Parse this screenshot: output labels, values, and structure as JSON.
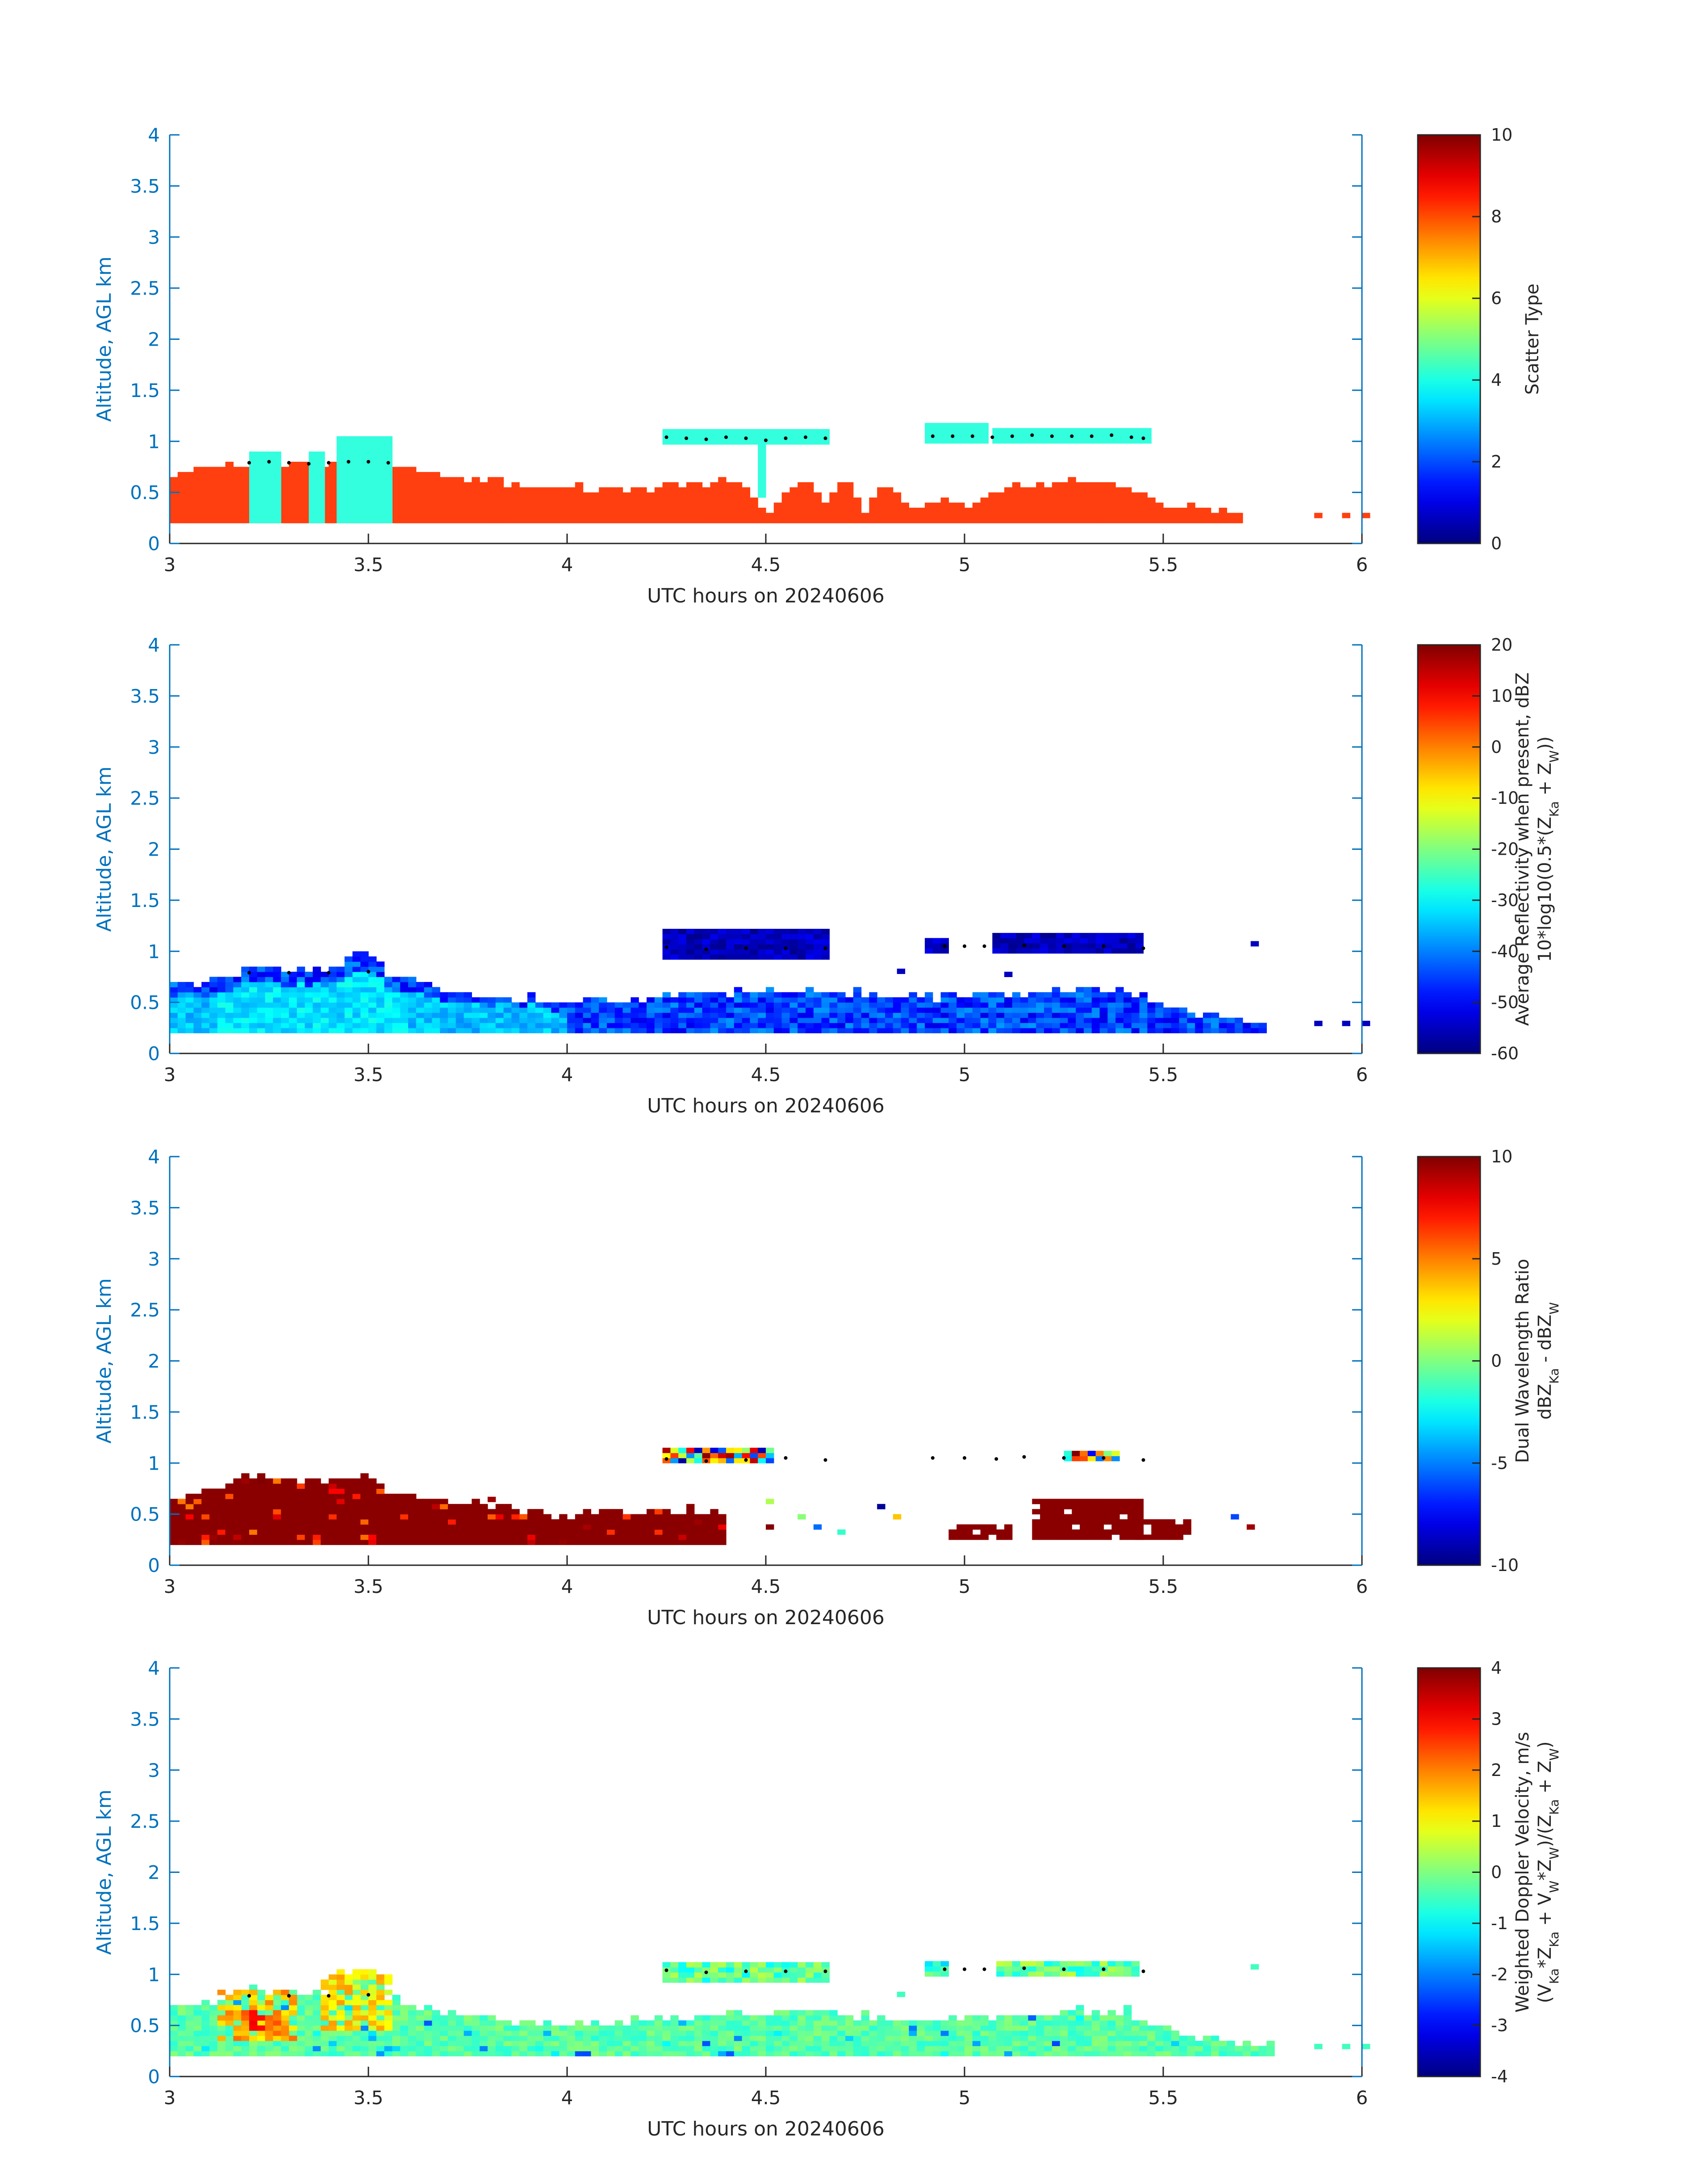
{
  "figure": {
    "background": "#ffffff",
    "axis_color": "#0072BD",
    "text_color": "#262626"
  },
  "chart_data": [
    {
      "type": "heatmap",
      "xlabel": "UTC hours on 20240606",
      "ylabel": "Altitude, AGL km",
      "xlim": [
        3,
        6
      ],
      "ylim": [
        0,
        4
      ],
      "xticks": [
        3,
        3.5,
        4,
        4.5,
        5,
        5.5,
        6
      ],
      "yticks": [
        0,
        0.5,
        1,
        1.5,
        2,
        2.5,
        3,
        3.5,
        4
      ],
      "colorbar": {
        "title_lines": [
          "Scatter Type"
        ],
        "range": [
          0,
          10
        ],
        "ticks": [
          0,
          2,
          4,
          6,
          8,
          10
        ],
        "colormap": "jet"
      },
      "fields": {
        "low": {
          "value": 8.3,
          "color": "#FF3F0F"
        },
        "cloud": {
          "value": 3.5,
          "color": "#33FFDE"
        }
      },
      "low_top_profile": [
        [
          3.0,
          0.62
        ],
        [
          3.1,
          0.72
        ],
        [
          3.2,
          0.75
        ],
        [
          3.3,
          0.75
        ],
        [
          3.4,
          0.75
        ],
        [
          3.5,
          0.75
        ],
        [
          3.55,
          0.75
        ],
        [
          3.6,
          0.7
        ],
        [
          3.7,
          0.65
        ],
        [
          3.8,
          0.6
        ],
        [
          3.9,
          0.55
        ],
        [
          4.0,
          0.52
        ],
        [
          4.1,
          0.5
        ],
        [
          4.2,
          0.52
        ],
        [
          4.3,
          0.55
        ],
        [
          4.4,
          0.58
        ],
        [
          4.45,
          0.5
        ],
        [
          4.5,
          0.3
        ],
        [
          4.55,
          0.45
        ],
        [
          4.6,
          0.55
        ],
        [
          4.65,
          0.4
        ],
        [
          4.7,
          0.6
        ],
        [
          4.75,
          0.3
        ],
        [
          4.8,
          0.55
        ],
        [
          4.85,
          0.4
        ],
        [
          4.9,
          0.35
        ],
        [
          4.95,
          0.4
        ],
        [
          5.0,
          0.35
        ],
        [
          5.05,
          0.45
        ],
        [
          5.1,
          0.5
        ],
        [
          5.15,
          0.55
        ],
        [
          5.2,
          0.55
        ],
        [
          5.25,
          0.6
        ],
        [
          5.3,
          0.6
        ],
        [
          5.35,
          0.58
        ],
        [
          5.4,
          0.55
        ],
        [
          5.45,
          0.5
        ],
        [
          5.5,
          0.35
        ],
        [
          5.55,
          0.33
        ],
        [
          5.6,
          0.35
        ],
        [
          5.65,
          0.3
        ],
        [
          5.7,
          0.25
        ]
      ],
      "cloud_layers": [
        {
          "x": [
            3.2,
            3.28
          ],
          "y": [
            0.2,
            0.9
          ]
        },
        {
          "x": [
            3.35,
            3.39
          ],
          "y": [
            0.2,
            0.9
          ]
        },
        {
          "x": [
            3.42,
            3.55
          ],
          "y": [
            0.2,
            1.05
          ]
        },
        {
          "x": [
            4.24,
            4.65
          ],
          "y": [
            0.97,
            1.12
          ]
        },
        {
          "x": [
            4.48,
            4.5
          ],
          "y": [
            0.45,
            1.0
          ]
        },
        {
          "x": [
            4.9,
            5.04
          ],
          "y": [
            0.98,
            1.18
          ]
        },
        {
          "x": [
            5.07,
            5.45
          ],
          "y": [
            0.98,
            1.12
          ]
        }
      ],
      "scatter_pixels": [
        [
          5.88,
          0.25
        ],
        [
          5.95,
          0.25
        ],
        [
          6.0,
          0.25
        ]
      ],
      "dotted_line": [
        [
          3.2,
          0.79
        ],
        [
          3.25,
          0.8
        ],
        [
          3.3,
          0.79
        ],
        [
          3.35,
          0.78
        ],
        [
          3.4,
          0.79
        ],
        [
          3.45,
          0.8
        ],
        [
          3.5,
          0.8
        ],
        [
          3.55,
          0.79
        ],
        [
          4.25,
          1.04
        ],
        [
          4.3,
          1.03
        ],
        [
          4.35,
          1.02
        ],
        [
          4.4,
          1.04
        ],
        [
          4.45,
          1.03
        ],
        [
          4.5,
          1.01
        ],
        [
          4.55,
          1.03
        ],
        [
          4.6,
          1.04
        ],
        [
          4.65,
          1.03
        ],
        [
          4.92,
          1.05
        ],
        [
          4.97,
          1.05
        ],
        [
          5.02,
          1.05
        ],
        [
          5.07,
          1.04
        ],
        [
          5.12,
          1.05
        ],
        [
          5.17,
          1.06
        ],
        [
          5.22,
          1.05
        ],
        [
          5.27,
          1.05
        ],
        [
          5.32,
          1.05
        ],
        [
          5.37,
          1.06
        ],
        [
          5.42,
          1.04
        ],
        [
          5.45,
          1.03
        ]
      ]
    },
    {
      "type": "heatmap",
      "xlabel": "UTC hours on 20240606",
      "ylabel": "Altitude, AGL km",
      "xlim": [
        3,
        6
      ],
      "ylim": [
        0,
        4
      ],
      "xticks": [
        3,
        3.5,
        4,
        4.5,
        5,
        5.5,
        6
      ],
      "yticks": [
        0,
        0.5,
        1,
        1.5,
        2,
        2.5,
        3,
        3.5,
        4
      ],
      "colorbar": {
        "title_lines": [
          "Average Reflectivity when present, dBZ",
          "10*log10(0.5*(Z",
          "Ka",
          " + Z",
          "W",
          "))"
        ],
        "range": [
          -60,
          20
        ],
        "ticks": [
          -60,
          -50,
          -40,
          -30,
          -20,
          -10,
          0,
          10,
          20
        ],
        "colormap": "jet"
      },
      "low_top_profile": [
        [
          3.0,
          0.65
        ],
        [
          3.1,
          0.68
        ],
        [
          3.2,
          0.8
        ],
        [
          3.3,
          0.8
        ],
        [
          3.4,
          0.78
        ],
        [
          3.5,
          1.0
        ],
        [
          3.55,
          0.75
        ],
        [
          3.6,
          0.7
        ],
        [
          3.7,
          0.6
        ],
        [
          3.8,
          0.55
        ],
        [
          3.9,
          0.52
        ],
        [
          4.0,
          0.48
        ],
        [
          4.1,
          0.5
        ],
        [
          4.2,
          0.52
        ],
        [
          4.3,
          0.55
        ],
        [
          4.4,
          0.58
        ],
        [
          4.5,
          0.6
        ],
        [
          4.6,
          0.62
        ],
        [
          4.7,
          0.58
        ],
        [
          4.8,
          0.55
        ],
        [
          4.9,
          0.52
        ],
        [
          5.0,
          0.58
        ],
        [
          5.1,
          0.55
        ],
        [
          5.2,
          0.6
        ],
        [
          5.3,
          0.62
        ],
        [
          5.4,
          0.6
        ],
        [
          5.5,
          0.45
        ],
        [
          5.6,
          0.35
        ],
        [
          5.7,
          0.3
        ],
        [
          5.75,
          0.28
        ]
      ],
      "low_core_dbz": -35,
      "low_edge_dbz": -45,
      "high_layer_dbz": -55,
      "cloud_layers": [
        {
          "x": [
            4.24,
            4.65
          ],
          "y": [
            0.92,
            1.18
          ]
        },
        {
          "x": [
            4.9,
            4.95
          ],
          "y": [
            0.98,
            1.1
          ]
        },
        {
          "x": [
            5.07,
            5.43
          ],
          "y": [
            0.98,
            1.15
          ]
        }
      ],
      "scatter_pixels": [
        [
          5.72,
          1.05
        ],
        [
          5.88,
          0.27
        ],
        [
          5.95,
          0.27
        ],
        [
          6.0,
          0.27
        ],
        [
          4.83,
          0.78
        ],
        [
          5.1,
          0.75
        ]
      ],
      "dotted_line": [
        [
          3.2,
          0.79
        ],
        [
          3.3,
          0.79
        ],
        [
          3.4,
          0.79
        ],
        [
          3.5,
          0.8
        ],
        [
          4.25,
          1.04
        ],
        [
          4.35,
          1.02
        ],
        [
          4.45,
          1.03
        ],
        [
          4.55,
          1.03
        ],
        [
          4.65,
          1.03
        ],
        [
          4.95,
          1.05
        ],
        [
          5.0,
          1.05
        ],
        [
          5.05,
          1.05
        ],
        [
          5.15,
          1.06
        ],
        [
          5.25,
          1.05
        ],
        [
          5.35,
          1.05
        ],
        [
          5.45,
          1.03
        ]
      ]
    },
    {
      "type": "heatmap",
      "xlabel": "UTC hours on 20240606",
      "ylabel": "Altitude, AGL km",
      "xlim": [
        3,
        6
      ],
      "ylim": [
        0,
        4
      ],
      "xticks": [
        3,
        3.5,
        4,
        4.5,
        5,
        5.5,
        6
      ],
      "yticks": [
        0,
        0.5,
        1,
        1.5,
        2,
        2.5,
        3,
        3.5,
        4
      ],
      "colorbar": {
        "title_lines": [
          "Dual Wavelength Ratio",
          "dBZ",
          "Ka",
          " - dBZ",
          "W"
        ],
        "range": [
          -10,
          10
        ],
        "ticks": [
          -10,
          -5,
          0,
          5,
          10
        ],
        "colormap": "jet"
      },
      "low_top_profile": [
        [
          3.0,
          0.6
        ],
        [
          3.1,
          0.7
        ],
        [
          3.2,
          0.85
        ],
        [
          3.3,
          0.82
        ],
        [
          3.4,
          0.8
        ],
        [
          3.5,
          0.85
        ],
        [
          3.55,
          0.7
        ],
        [
          3.6,
          0.65
        ],
        [
          3.7,
          0.6
        ],
        [
          3.8,
          0.58
        ],
        [
          3.9,
          0.52
        ],
        [
          4.0,
          0.45
        ],
        [
          4.1,
          0.5
        ],
        [
          4.2,
          0.52
        ],
        [
          4.3,
          0.52
        ],
        [
          4.35,
          0.5
        ],
        [
          4.4,
          0.45
        ]
      ],
      "low_dwr": 9.8,
      "patches": [
        {
          "x": [
            5.17,
            5.43
          ],
          "y": [
            0.25,
            0.65
          ],
          "dwr": 9.8
        },
        {
          "x": [
            5.43,
            5.56
          ],
          "y": [
            0.25,
            0.42
          ],
          "dwr": 9.8
        },
        {
          "x": [
            4.96,
            5.1
          ],
          "y": [
            0.25,
            0.38
          ],
          "dwr": 9.8
        }
      ],
      "cloud_layers": [
        {
          "x": [
            4.24,
            4.5
          ],
          "y": [
            1.0,
            1.12
          ]
        },
        {
          "x": [
            5.25,
            5.38
          ],
          "y": [
            1.02,
            1.1
          ]
        }
      ],
      "scatter_pixels": [
        [
          4.5,
          0.35
        ],
        [
          4.58,
          0.45
        ],
        [
          4.62,
          0.35
        ],
        [
          4.78,
          0.55
        ],
        [
          4.82,
          0.45
        ],
        [
          4.68,
          0.3
        ],
        [
          5.67,
          0.45
        ],
        [
          5.71,
          0.35
        ],
        [
          4.5,
          0.6
        ],
        [
          3.8,
          0.62
        ]
      ],
      "dotted_line": [
        [
          4.25,
          1.04
        ],
        [
          4.35,
          1.02
        ],
        [
          4.45,
          1.03
        ],
        [
          4.55,
          1.05
        ],
        [
          4.65,
          1.03
        ],
        [
          4.92,
          1.05
        ],
        [
          5.0,
          1.05
        ],
        [
          5.08,
          1.04
        ],
        [
          5.15,
          1.06
        ],
        [
          5.25,
          1.05
        ],
        [
          5.35,
          1.05
        ],
        [
          5.45,
          1.03
        ]
      ]
    },
    {
      "type": "heatmap",
      "xlabel": "UTC hours on 20240606",
      "ylabel": "Altitude, AGL km",
      "xlim": [
        3,
        6
      ],
      "ylim": [
        0,
        4
      ],
      "xticks": [
        3,
        3.5,
        4,
        4.5,
        5,
        5.5,
        6
      ],
      "yticks": [
        0,
        0.5,
        1,
        1.5,
        2,
        2.5,
        3,
        3.5,
        4
      ],
      "colorbar": {
        "title_lines": [
          "Weighted Doppler Velocity, m/s",
          "(V",
          "Ka",
          "*Z",
          "Ka",
          " + V",
          "W",
          "*Z",
          "W",
          ")/(Z",
          "Ka",
          " + Z",
          "W",
          ")"
        ],
        "range": [
          -4,
          4
        ],
        "ticks": [
          -4,
          -3,
          -2,
          -1,
          0,
          1,
          2,
          3,
          4
        ],
        "colormap": "jet"
      },
      "low_top_profile": [
        [
          3.0,
          0.65
        ],
        [
          3.1,
          0.7
        ],
        [
          3.2,
          0.85
        ],
        [
          3.3,
          0.8
        ],
        [
          3.4,
          0.78
        ],
        [
          3.5,
          1.05
        ],
        [
          3.55,
          0.75
        ],
        [
          3.6,
          0.7
        ],
        [
          3.7,
          0.6
        ],
        [
          3.8,
          0.55
        ],
        [
          3.9,
          0.52
        ],
        [
          4.0,
          0.48
        ],
        [
          4.1,
          0.5
        ],
        [
          4.2,
          0.52
        ],
        [
          4.3,
          0.55
        ],
        [
          4.4,
          0.58
        ],
        [
          4.5,
          0.6
        ],
        [
          4.6,
          0.62
        ],
        [
          4.7,
          0.58
        ],
        [
          4.8,
          0.55
        ],
        [
          4.9,
          0.52
        ],
        [
          5.0,
          0.58
        ],
        [
          5.1,
          0.55
        ],
        [
          5.2,
          0.6
        ],
        [
          5.3,
          0.62
        ],
        [
          5.4,
          0.6
        ],
        [
          5.5,
          0.45
        ],
        [
          5.6,
          0.35
        ],
        [
          5.7,
          0.3
        ],
        [
          5.78,
          0.28
        ]
      ],
      "low_velocity": -0.3,
      "warm_patches": [
        {
          "x": [
            3.12,
            3.32
          ],
          "y": [
            0.35,
            0.85
          ],
          "v": 1.6
        },
        {
          "x": [
            3.38,
            3.55
          ],
          "y": [
            0.45,
            1.05
          ],
          "v": 1.2
        },
        {
          "x": [
            3.18,
            3.28
          ],
          "y": [
            0.45,
            0.65
          ],
          "v": 2.6
        }
      ],
      "cloud_layers": [
        {
          "x": [
            4.24,
            4.65
          ],
          "y": [
            0.92,
            1.12
          ],
          "v": -0.3
        },
        {
          "x": [
            4.9,
            4.95
          ],
          "y": [
            0.98,
            1.1
          ],
          "v": -0.6
        },
        {
          "x": [
            5.08,
            5.43
          ],
          "y": [
            0.98,
            1.12
          ],
          "v": -0.2
        }
      ],
      "scatter_pixels": [
        [
          5.72,
          1.05
        ],
        [
          5.88,
          0.27
        ],
        [
          5.95,
          0.27
        ],
        [
          6.0,
          0.27
        ],
        [
          4.83,
          0.78
        ],
        [
          4.5,
          0.3
        ],
        [
          5.4,
          0.65
        ]
      ],
      "dotted_line": [
        [
          3.2,
          0.79
        ],
        [
          3.3,
          0.79
        ],
        [
          3.4,
          0.79
        ],
        [
          3.5,
          0.8
        ],
        [
          4.25,
          1.04
        ],
        [
          4.35,
          1.02
        ],
        [
          4.45,
          1.03
        ],
        [
          4.55,
          1.03
        ],
        [
          4.65,
          1.03
        ],
        [
          4.95,
          1.05
        ],
        [
          5.0,
          1.05
        ],
        [
          5.05,
          1.05
        ],
        [
          5.15,
          1.06
        ],
        [
          5.25,
          1.05
        ],
        [
          5.35,
          1.05
        ],
        [
          5.45,
          1.03
        ]
      ]
    }
  ]
}
